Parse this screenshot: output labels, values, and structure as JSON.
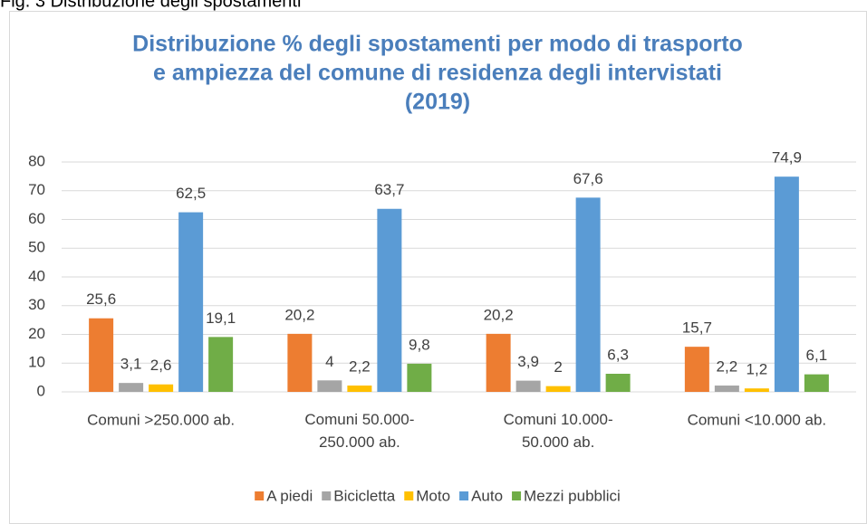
{
  "caption": "Fig. 3 Distribuzione degli spostamenti",
  "chart_data": {
    "type": "bar",
    "title": [
      "Distribuzione % degli spostamenti per modo di trasporto",
      "e ampiezza del comune di residenza degli intervistati",
      "(2019)"
    ],
    "categories": [
      "Comuni >250.000 ab.",
      "Comuni 50.000-250.000 ab.",
      "Comuni 10.000-50.000 ab.",
      "Comuni <10.000 ab."
    ],
    "series": [
      {
        "name": "A piedi",
        "color": "#ed7d31",
        "values": [
          25.6,
          20.2,
          20.2,
          15.7
        ],
        "value_labels": [
          "25,6",
          "20,2",
          "20,2",
          "15,7"
        ]
      },
      {
        "name": "Bicicletta",
        "color": "#a5a5a5",
        "values": [
          3.1,
          4,
          3.9,
          2.2
        ],
        "value_labels": [
          "3,1",
          "4",
          "3,9",
          "2,2"
        ]
      },
      {
        "name": "Moto",
        "color": "#ffc000",
        "values": [
          2.6,
          2.2,
          2,
          1.2
        ],
        "value_labels": [
          "2,6",
          "2,2",
          "2",
          "1,2"
        ]
      },
      {
        "name": "Auto",
        "color": "#5b9bd5",
        "values": [
          62.5,
          63.7,
          67.6,
          74.9
        ],
        "value_labels": [
          "62,5",
          "63,7",
          "67,6",
          "74,9"
        ]
      },
      {
        "name": "Mezzi pubblici",
        "color": "#70ad47",
        "values": [
          19.1,
          9.8,
          6.3,
          6.1
        ],
        "value_labels": [
          "19,1",
          "9,8",
          "6,3",
          "6,1"
        ]
      }
    ],
    "ylim": [
      0,
      80
    ],
    "yticks": [
      0,
      10,
      20,
      30,
      40,
      50,
      60,
      70,
      80
    ],
    "grid": true,
    "legend": "bottom"
  }
}
